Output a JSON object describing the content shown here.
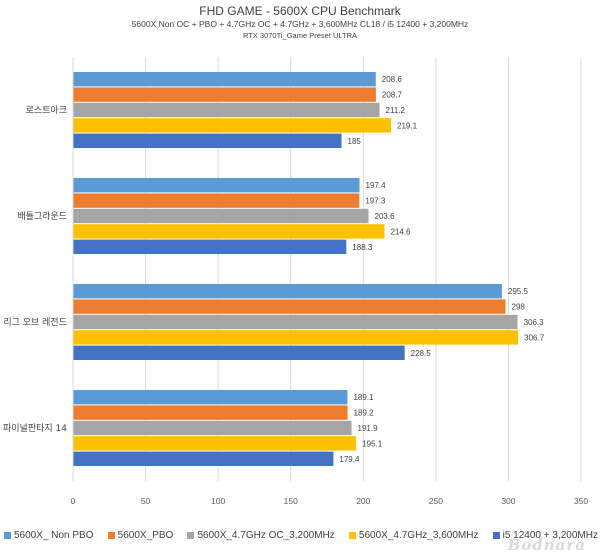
{
  "chart_data": {
    "type": "bar",
    "orientation": "horizontal",
    "title": "FHD GAME - 5600X CPU Benchmark",
    "subtitle": "5600X Non OC + PBO + 4.7GHz OC + 4.7GHz + 3,600MHz CL18 / i5 12400 + 3,200MHz",
    "subtitle2": "RTX 3070Ti_Game Preset ULTRA",
    "categories": [
      "로스트아크",
      "배틀그라운드",
      "리그 오브 레전드",
      "파이널판타지 14"
    ],
    "series": [
      {
        "name": "5600X_ Non PBO",
        "color": "#5b9bd5",
        "values": [
          208.6,
          197.4,
          295.5,
          189.1
        ]
      },
      {
        "name": "5600X_PBO",
        "color": "#ed7d31",
        "values": [
          208.7,
          197.3,
          298,
          189.2
        ]
      },
      {
        "name": "5600X_4.7GHz OC_3,200MHz",
        "color": "#a5a5a5",
        "values": [
          211.2,
          203.6,
          306.3,
          191.9
        ]
      },
      {
        "name": "5600X_4.7GHz_3,600MHz",
        "color": "#ffc000",
        "values": [
          219.1,
          214.6,
          306.7,
          195.1
        ]
      },
      {
        "name": "i5 12400 + 3,200MHz",
        "color": "#4472c4",
        "values": [
          185,
          188.3,
          228.5,
          179.4
        ]
      }
    ],
    "xlim": [
      0,
      350
    ],
    "xticks": [
      0,
      50,
      100,
      150,
      200,
      250,
      300,
      350
    ],
    "grid": true,
    "legend": "bottom"
  },
  "watermark": "Bodnara"
}
